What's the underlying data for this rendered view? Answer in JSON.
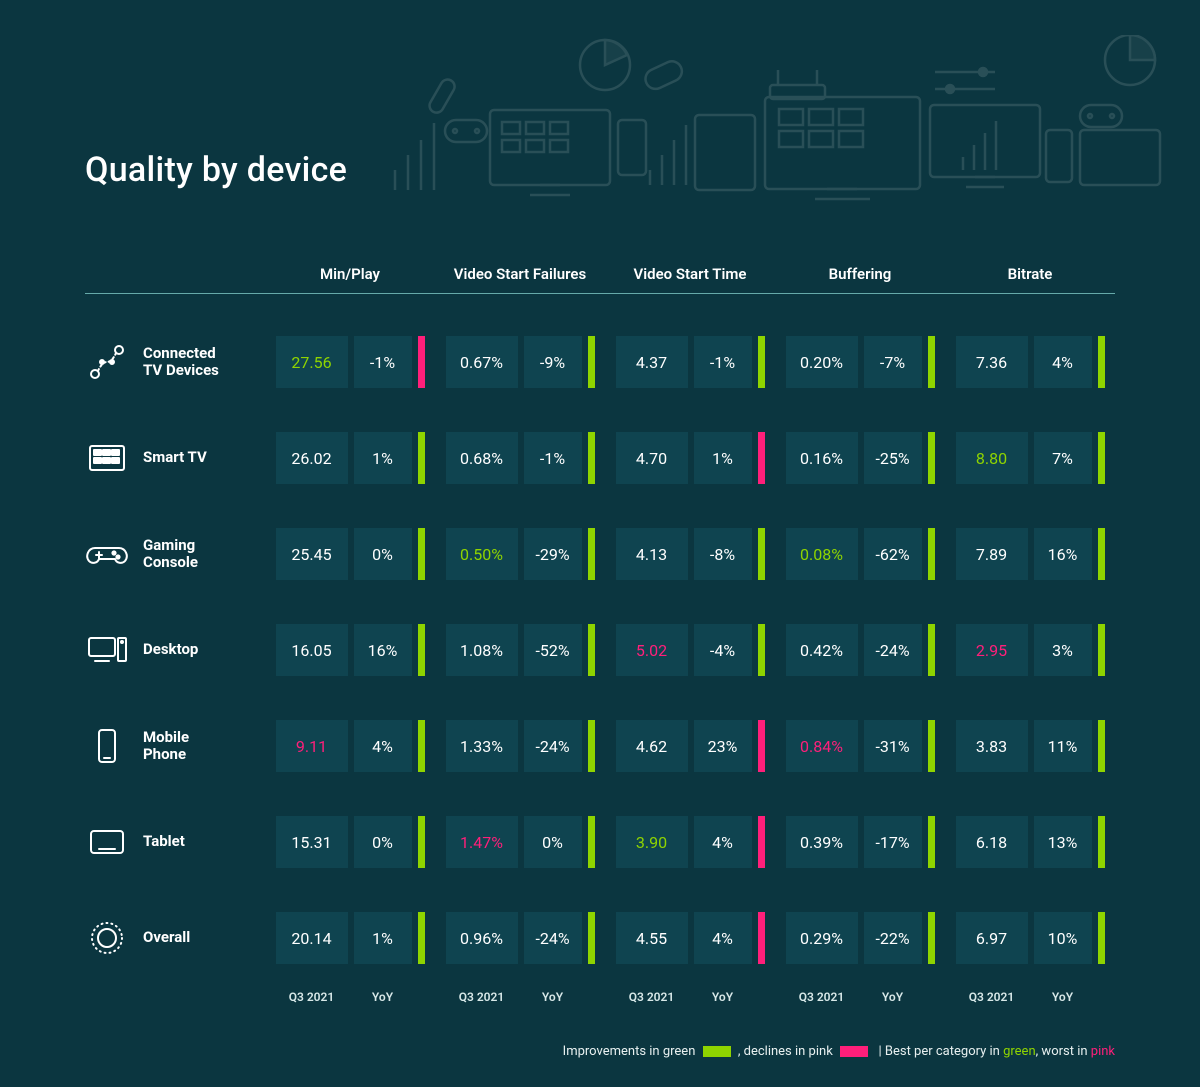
{
  "colors": {
    "background": "#0b3640",
    "cell_bg": "#0f4450",
    "green": "#8fd400",
    "pink": "#ff1f7a",
    "text": "#ffffff",
    "decoration": "#2aa8a8"
  },
  "title": "Quality by device",
  "subheaders": {
    "q": "Q3 2021",
    "y": "YoY"
  },
  "legend": {
    "part1": "Improvements in green",
    "part2": ", declines in pink",
    "part3": "|  Best per category in ",
    "green_word": "green",
    "part4": ", worst in ",
    "pink_word": "pink"
  },
  "metrics": [
    {
      "label": "Min/Play"
    },
    {
      "label": "Video Start Failures"
    },
    {
      "label": "Video Start Time"
    },
    {
      "label": "Buffering"
    },
    {
      "label": "Bitrate"
    }
  ],
  "rows": [
    {
      "label": "Connected\nTV Devices",
      "icon": "connected-tv",
      "cells": [
        {
          "val": "27.56",
          "val_color": "green",
          "yoy": "-1%",
          "bar": "pink"
        },
        {
          "val": "0.67%",
          "yoy": "-9%",
          "bar": "green"
        },
        {
          "val": "4.37",
          "yoy": "-1%",
          "bar": "green"
        },
        {
          "val": "0.20%",
          "yoy": "-7%",
          "bar": "green"
        },
        {
          "val": "7.36",
          "yoy": "4%",
          "bar": "green"
        }
      ]
    },
    {
      "label": "Smart TV",
      "icon": "smart-tv",
      "cells": [
        {
          "val": "26.02",
          "yoy": "1%",
          "bar": "green"
        },
        {
          "val": "0.68%",
          "yoy": "-1%",
          "bar": "green"
        },
        {
          "val": "4.70",
          "yoy": "1%",
          "bar": "pink"
        },
        {
          "val": "0.16%",
          "yoy": "-25%",
          "bar": "green"
        },
        {
          "val": "8.80",
          "val_color": "green",
          "yoy": "7%",
          "bar": "green"
        }
      ]
    },
    {
      "label": "Gaming\nConsole",
      "icon": "gaming",
      "cells": [
        {
          "val": "25.45",
          "yoy": "0%",
          "bar": "green"
        },
        {
          "val": "0.50%",
          "val_color": "green",
          "yoy": "-29%",
          "bar": "green"
        },
        {
          "val": "4.13",
          "yoy": "-8%",
          "bar": "green"
        },
        {
          "val": "0.08%",
          "val_color": "green",
          "yoy": "-62%",
          "bar": "green"
        },
        {
          "val": "7.89",
          "yoy": "16%",
          "bar": "green"
        }
      ]
    },
    {
      "label": "Desktop",
      "icon": "desktop",
      "cells": [
        {
          "val": "16.05",
          "yoy": "16%",
          "bar": "green"
        },
        {
          "val": "1.08%",
          "yoy": "-52%",
          "bar": "green"
        },
        {
          "val": "5.02",
          "val_color": "pink",
          "yoy": "-4%",
          "bar": "green"
        },
        {
          "val": "0.42%",
          "yoy": "-24%",
          "bar": "green"
        },
        {
          "val": "2.95",
          "val_color": "pink",
          "yoy": "3%",
          "bar": "green"
        }
      ]
    },
    {
      "label": "Mobile\nPhone",
      "icon": "mobile",
      "cells": [
        {
          "val": "9.11",
          "val_color": "pink",
          "yoy": "4%",
          "bar": "green"
        },
        {
          "val": "1.33%",
          "yoy": "-24%",
          "bar": "green"
        },
        {
          "val": "4.62",
          "yoy": "23%",
          "bar": "pink"
        },
        {
          "val": "0.84%",
          "val_color": "pink",
          "yoy": "-31%",
          "bar": "green"
        },
        {
          "val": "3.83",
          "yoy": "11%",
          "bar": "green"
        }
      ]
    },
    {
      "label": "Tablet",
      "icon": "tablet",
      "cells": [
        {
          "val": "15.31",
          "yoy": "0%",
          "bar": "green"
        },
        {
          "val": "1.47%",
          "val_color": "pink",
          "yoy": "0%",
          "bar": "green"
        },
        {
          "val": "3.90",
          "val_color": "green",
          "yoy": "4%",
          "bar": "pink"
        },
        {
          "val": "0.39%",
          "yoy": "-17%",
          "bar": "green"
        },
        {
          "val": "6.18",
          "yoy": "13%",
          "bar": "green"
        }
      ]
    },
    {
      "label": "Overall",
      "icon": "overall",
      "cells": [
        {
          "val": "20.14",
          "yoy": "1%",
          "bar": "green"
        },
        {
          "val": "0.96%",
          "yoy": "-24%",
          "bar": "green"
        },
        {
          "val": "4.55",
          "yoy": "4%",
          "bar": "pink"
        },
        {
          "val": "0.29%",
          "yoy": "-22%",
          "bar": "green"
        },
        {
          "val": "6.97",
          "yoy": "10%",
          "bar": "green"
        }
      ]
    }
  ]
}
